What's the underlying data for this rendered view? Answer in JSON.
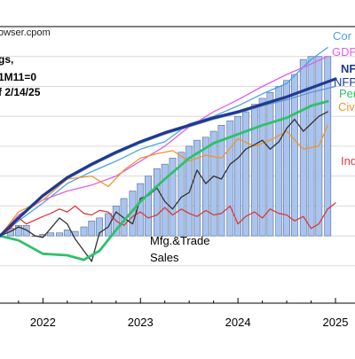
{
  "chart_data": {
    "type": "line",
    "source_text": "owser.cpom",
    "note_lines": [
      "gs,",
      "1M11=0",
      "f 2/14/25"
    ],
    "x_ticks": [
      "2022",
      "2023",
      "2024",
      "2025"
    ],
    "x_tick_values": [
      2022.0,
      2023.0,
      2024.0,
      2025.0
    ],
    "xlim": [
      2021.56,
      2025.2
    ],
    "ylim": [
      -0.045,
      0.14
    ],
    "y_gridlines": [
      -0.02,
      0.0,
      0.02,
      0.04,
      0.06,
      0.08,
      0.1,
      0.12
    ],
    "grid": true,
    "annotation": "Mfg.&Trade\nSales",
    "bars": {
      "name": "",
      "color": "#a9c4ee",
      "x": [
        2021.67,
        2021.75,
        2021.83,
        2021.92,
        2022.0,
        2022.08,
        2022.17,
        2022.25,
        2022.33,
        2022.42,
        2022.5,
        2022.58,
        2022.67,
        2022.75,
        2022.83,
        2022.92,
        2023.0,
        2023.08,
        2023.17,
        2023.25,
        2023.33,
        2023.42,
        2023.5,
        2023.58,
        2023.67,
        2023.75,
        2023.83,
        2023.92,
        2024.0,
        2024.08,
        2024.17,
        2024.25,
        2024.33,
        2024.42,
        2024.5,
        2024.58,
        2024.67,
        2024.75,
        2024.83,
        2024.92
      ],
      "values": [
        0.005,
        0.007,
        0.007,
        0.0,
        0.001,
        0.002,
        0.002,
        0.004,
        0.003,
        0.006,
        0.01,
        0.012,
        0.015,
        0.02,
        0.025,
        0.03,
        0.035,
        0.04,
        0.045,
        0.048,
        0.052,
        0.056,
        0.06,
        0.064,
        0.066,
        0.07,
        0.074,
        0.077,
        0.08,
        0.083,
        0.088,
        0.092,
        0.096,
        0.1,
        0.104,
        0.108,
        0.118,
        0.12,
        0.12,
        0.12
      ]
    },
    "series": [
      {
        "name": "Cor",
        "color": "#4aa3e8",
        "width": 1.3,
        "x": [
          2021.56,
          2021.75,
          2022.0,
          2022.25,
          2022.5,
          2022.75,
          2023.0,
          2023.25,
          2023.5,
          2023.75,
          2024.0,
          2024.25,
          2024.5,
          2024.75,
          2024.92
        ],
        "y": [
          0.0,
          0.01,
          0.022,
          0.035,
          0.043,
          0.05,
          0.058,
          0.063,
          0.075,
          0.08,
          0.087,
          0.095,
          0.102,
          0.118,
          0.126
        ]
      },
      {
        "name": "GDP",
        "color": "#e15ee6",
        "width": 1.3,
        "x": [
          2021.56,
          2021.75,
          2022.0,
          2022.25,
          2022.5,
          2022.75,
          2023.0,
          2023.25,
          2023.5,
          2023.75,
          2024.0,
          2024.25,
          2024.5,
          2024.75,
          2024.92
        ],
        "y": [
          0.0,
          0.014,
          0.024,
          0.03,
          0.034,
          0.04,
          0.05,
          0.06,
          0.073,
          0.083,
          0.091,
          0.1,
          0.108,
          0.115,
          0.12
        ]
      },
      {
        "name": "NF",
        "color": "#1f3a8f",
        "width": 3.2,
        "x": [
          2021.56,
          2021.75,
          2022.0,
          2022.25,
          2022.5,
          2022.75,
          2023.0,
          2023.25,
          2023.5,
          2023.75,
          2024.0,
          2024.25,
          2024.5,
          2024.75,
          2025.0
        ],
        "y": [
          0.0,
          0.012,
          0.027,
          0.039,
          0.048,
          0.056,
          0.063,
          0.069,
          0.074,
          0.079,
          0.083,
          0.088,
          0.093,
          0.099,
          0.105
        ]
      },
      {
        "name": "NFP",
        "color": "#5b8fd1",
        "width": 1.2,
        "x": [
          2021.56,
          2021.75,
          2022.0,
          2022.25,
          2022.5,
          2022.75,
          2023.0,
          2023.25,
          2023.5,
          2023.75,
          2024.0,
          2024.25,
          2024.5,
          2024.75,
          2025.0
        ],
        "y": [
          0.0,
          0.012,
          0.026,
          0.038,
          0.047,
          0.055,
          0.062,
          0.068,
          0.073,
          0.078,
          0.082,
          0.087,
          0.091,
          0.096,
          0.1
        ]
      },
      {
        "name": "Per",
        "color": "#2fc06a",
        "width": 2.8,
        "x": [
          2021.56,
          2021.75,
          2022.0,
          2022.25,
          2022.42,
          2022.58,
          2022.75,
          2023.0,
          2023.25,
          2023.5,
          2023.75,
          2024.0,
          2024.25,
          2024.5,
          2024.75,
          2024.92
        ],
        "y": [
          0.0,
          -0.003,
          -0.012,
          -0.013,
          -0.016,
          -0.01,
          0.004,
          0.023,
          0.038,
          0.052,
          0.062,
          0.068,
          0.074,
          0.079,
          0.087,
          0.09
        ]
      },
      {
        "name": "Civ",
        "color": "#f0932c",
        "width": 1.3,
        "x": [
          2021.56,
          2021.75,
          2022.0,
          2022.25,
          2022.5,
          2022.67,
          2022.83,
          2023.0,
          2023.17,
          2023.33,
          2023.5,
          2023.67,
          2023.83,
          2024.0,
          2024.17,
          2024.33,
          2024.5,
          2024.67,
          2024.83,
          2024.92
        ],
        "y": [
          0.0,
          0.016,
          0.024,
          0.038,
          0.04,
          0.033,
          0.044,
          0.052,
          0.055,
          0.057,
          0.05,
          0.054,
          0.052,
          0.065,
          0.06,
          0.064,
          0.07,
          0.058,
          0.06,
          0.074
        ]
      },
      {
        "name": "Ind",
        "color": "#d93a3a",
        "width": 1.3,
        "x": [
          2021.56,
          2021.67,
          2021.75,
          2021.83,
          2022.0,
          2022.08,
          2022.17,
          2022.25,
          2022.33,
          2022.42,
          2022.5,
          2022.58,
          2022.67,
          2022.75,
          2022.83,
          2022.92,
          2023.0,
          2023.08,
          2023.17,
          2023.25,
          2023.33,
          2023.42,
          2023.5,
          2023.58,
          2023.67,
          2023.75,
          2023.83,
          2023.92,
          2024.0,
          2024.08,
          2024.17,
          2024.25,
          2024.33,
          2024.42,
          2024.5,
          2024.58,
          2024.67,
          2024.75,
          2024.83,
          2024.92,
          2025.0
        ],
        "y": [
          0.0,
          0.005,
          0.012,
          0.008,
          0.013,
          0.015,
          0.018,
          0.016,
          0.02,
          0.015,
          0.014,
          0.017,
          0.016,
          0.01,
          0.007,
          0.013,
          0.016,
          0.012,
          0.014,
          0.019,
          0.014,
          0.018,
          0.015,
          0.013,
          0.017,
          0.014,
          0.015,
          0.02,
          0.008,
          0.013,
          0.016,
          0.012,
          0.018,
          0.015,
          0.014,
          0.01,
          0.013,
          0.005,
          0.008,
          0.018,
          0.022
        ]
      },
      {
        "name": "Mfg.&Trade Sales",
        "color": "#333333",
        "width": 1.3,
        "x": [
          2021.56,
          2021.67,
          2021.75,
          2021.83,
          2021.92,
          2022.0,
          2022.08,
          2022.17,
          2022.25,
          2022.33,
          2022.42,
          2022.5,
          2022.58,
          2022.67,
          2022.75,
          2022.83,
          2022.92,
          2023.0,
          2023.08,
          2023.17,
          2023.25,
          2023.33,
          2023.42,
          2023.5,
          2023.58,
          2023.67,
          2023.75,
          2023.83,
          2023.92,
          2024.0,
          2024.08,
          2024.17,
          2024.25,
          2024.33,
          2024.42,
          2024.5,
          2024.58,
          2024.67,
          2024.75,
          2024.83,
          2024.92
        ],
        "y": [
          0.0,
          0.003,
          0.006,
          0.004,
          0.0,
          -0.001,
          0.005,
          0.012,
          0.008,
          -0.002,
          -0.01,
          -0.017,
          0.002,
          0.006,
          0.016,
          0.012,
          0.008,
          0.025,
          0.027,
          0.032,
          0.023,
          0.018,
          0.026,
          0.029,
          0.044,
          0.035,
          0.04,
          0.038,
          0.048,
          0.052,
          0.058,
          0.061,
          0.064,
          0.058,
          0.063,
          0.072,
          0.078,
          0.07,
          0.075,
          0.08,
          0.083
        ]
      }
    ],
    "labels": [
      {
        "text": "Cor",
        "series": "Cor",
        "color": "#4aa3e8",
        "bold": false
      },
      {
        "text": "GDP",
        "series": "GDP",
        "color": "#e15ee6",
        "bold": false
      },
      {
        "text": "NF",
        "series": "NF",
        "color": "#1f3a8f",
        "bold": true
      },
      {
        "text": "NFP",
        "series": "NFP",
        "color": "#1f3a8f",
        "bold": false
      },
      {
        "text": "Per",
        "series": "Per",
        "color": "#2fc06a",
        "bold": false
      },
      {
        "text": "Civ",
        "series": "Civ",
        "color": "#f0932c",
        "bold": false
      },
      {
        "text": "Ind",
        "series": "Ind",
        "color": "#d93a3a",
        "bold": false
      }
    ]
  }
}
